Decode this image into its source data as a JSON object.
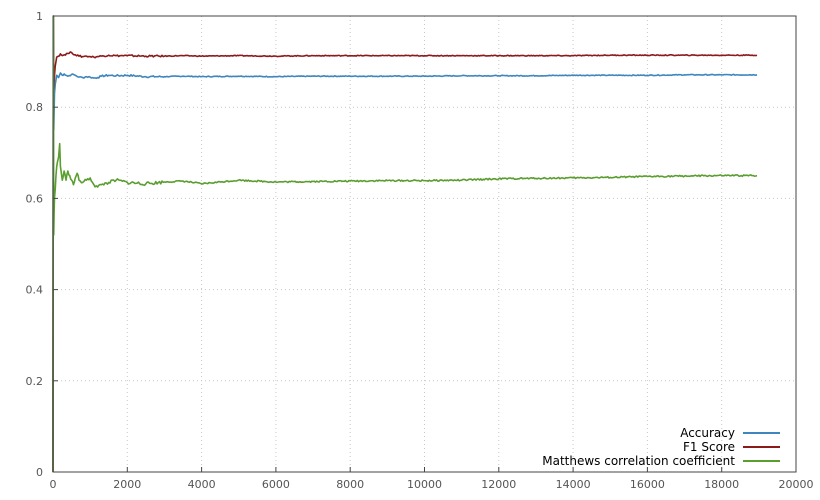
{
  "chart_data": {
    "type": "line",
    "title": "",
    "xlabel": "",
    "ylabel": "",
    "xlim": [
      0,
      20000
    ],
    "ylim": [
      0,
      1
    ],
    "grid": true,
    "legend_position": "bottom-right",
    "x_ticks": [
      {
        "value": 0,
        "label": "0"
      },
      {
        "value": 2000,
        "label": "2000"
      },
      {
        "value": 4000,
        "label": "4000"
      },
      {
        "value": 6000,
        "label": "6000"
      },
      {
        "value": 8000,
        "label": "8000"
      },
      {
        "value": 10000,
        "label": "10000"
      },
      {
        "value": 12000,
        "label": "12000"
      },
      {
        "value": 14000,
        "label": "14000"
      },
      {
        "value": 16000,
        "label": "16000"
      },
      {
        "value": 18000,
        "label": "18000"
      },
      {
        "value": 20000,
        "label": "20000"
      }
    ],
    "y_ticks": [
      {
        "value": 0,
        "label": "0"
      },
      {
        "value": 0.2,
        "label": "0.2"
      },
      {
        "value": 0.4,
        "label": "0.4"
      },
      {
        "value": 0.6,
        "label": "0.6"
      },
      {
        "value": 0.8,
        "label": "0.8"
      },
      {
        "value": 1,
        "label": "1"
      }
    ],
    "series": [
      {
        "name": "Accuracy",
        "color": "#3e86bd",
        "x": [
          0,
          10,
          20,
          40,
          60,
          80,
          100,
          150,
          200,
          250,
          300,
          400,
          500,
          600,
          700,
          800,
          900,
          1000,
          1100,
          1200,
          1300,
          1500,
          1700,
          2000,
          2500,
          3000,
          3500,
          4000,
          5000,
          6000,
          7000,
          8000,
          9000,
          10000,
          11000,
          12000,
          13000,
          14000,
          15000,
          16000,
          17000,
          18000,
          18950
        ],
        "y": [
          0.0,
          1.0,
          0.75,
          0.83,
          0.85,
          0.86,
          0.87,
          0.865,
          0.875,
          0.87,
          0.873,
          0.868,
          0.872,
          0.87,
          0.866,
          0.865,
          0.867,
          0.866,
          0.864,
          0.865,
          0.868,
          0.87,
          0.869,
          0.87,
          0.867,
          0.867,
          0.868,
          0.867,
          0.868,
          0.867,
          0.868,
          0.868,
          0.868,
          0.868,
          0.869,
          0.869,
          0.869,
          0.87,
          0.87,
          0.87,
          0.871,
          0.871,
          0.871
        ]
      },
      {
        "name": "F1 Score",
        "color": "#8b1a1a",
        "x": [
          0,
          10,
          20,
          40,
          60,
          80,
          100,
          150,
          200,
          250,
          300,
          400,
          500,
          600,
          700,
          800,
          900,
          1000,
          1100,
          1200,
          1300,
          1500,
          1700,
          2000,
          2500,
          3000,
          3500,
          4000,
          5000,
          6000,
          7000,
          8000,
          9000,
          10000,
          11000,
          12000,
          13000,
          14000,
          15000,
          16000,
          17000,
          18000,
          18950
        ],
        "y": [
          0.0,
          1.0,
          0.84,
          0.87,
          0.89,
          0.9,
          0.91,
          0.912,
          0.917,
          0.913,
          0.915,
          0.918,
          0.92,
          0.915,
          0.912,
          0.911,
          0.912,
          0.911,
          0.91,
          0.911,
          0.912,
          0.914,
          0.913,
          0.913,
          0.912,
          0.912,
          0.913,
          0.912,
          0.913,
          0.912,
          0.913,
          0.913,
          0.913,
          0.913,
          0.913,
          0.913,
          0.913,
          0.913,
          0.914,
          0.914,
          0.914,
          0.914,
          0.914
        ]
      },
      {
        "name": "Matthews correlation coefficient",
        "color": "#5a9e2f",
        "x": [
          0,
          10,
          20,
          30,
          40,
          60,
          80,
          100,
          120,
          150,
          180,
          200,
          250,
          300,
          350,
          400,
          450,
          500,
          550,
          600,
          650,
          700,
          800,
          900,
          1000,
          1100,
          1200,
          1300,
          1500,
          1700,
          2000,
          2500,
          3000,
          3500,
          4000,
          4500,
          5000,
          6000,
          7000,
          8000,
          9000,
          10000,
          11000,
          12000,
          13000,
          14000,
          15000,
          16000,
          17000,
          18000,
          18950
        ],
        "y": [
          0.0,
          1.0,
          0.52,
          0.57,
          0.6,
          0.62,
          0.65,
          0.67,
          0.68,
          0.69,
          0.72,
          0.67,
          0.64,
          0.66,
          0.64,
          0.66,
          0.65,
          0.64,
          0.63,
          0.645,
          0.655,
          0.64,
          0.635,
          0.64,
          0.645,
          0.63,
          0.625,
          0.63,
          0.635,
          0.64,
          0.635,
          0.632,
          0.636,
          0.638,
          0.632,
          0.636,
          0.64,
          0.636,
          0.637,
          0.638,
          0.639,
          0.639,
          0.64,
          0.643,
          0.644,
          0.645,
          0.646,
          0.648,
          0.649,
          0.65,
          0.65
        ]
      }
    ]
  }
}
